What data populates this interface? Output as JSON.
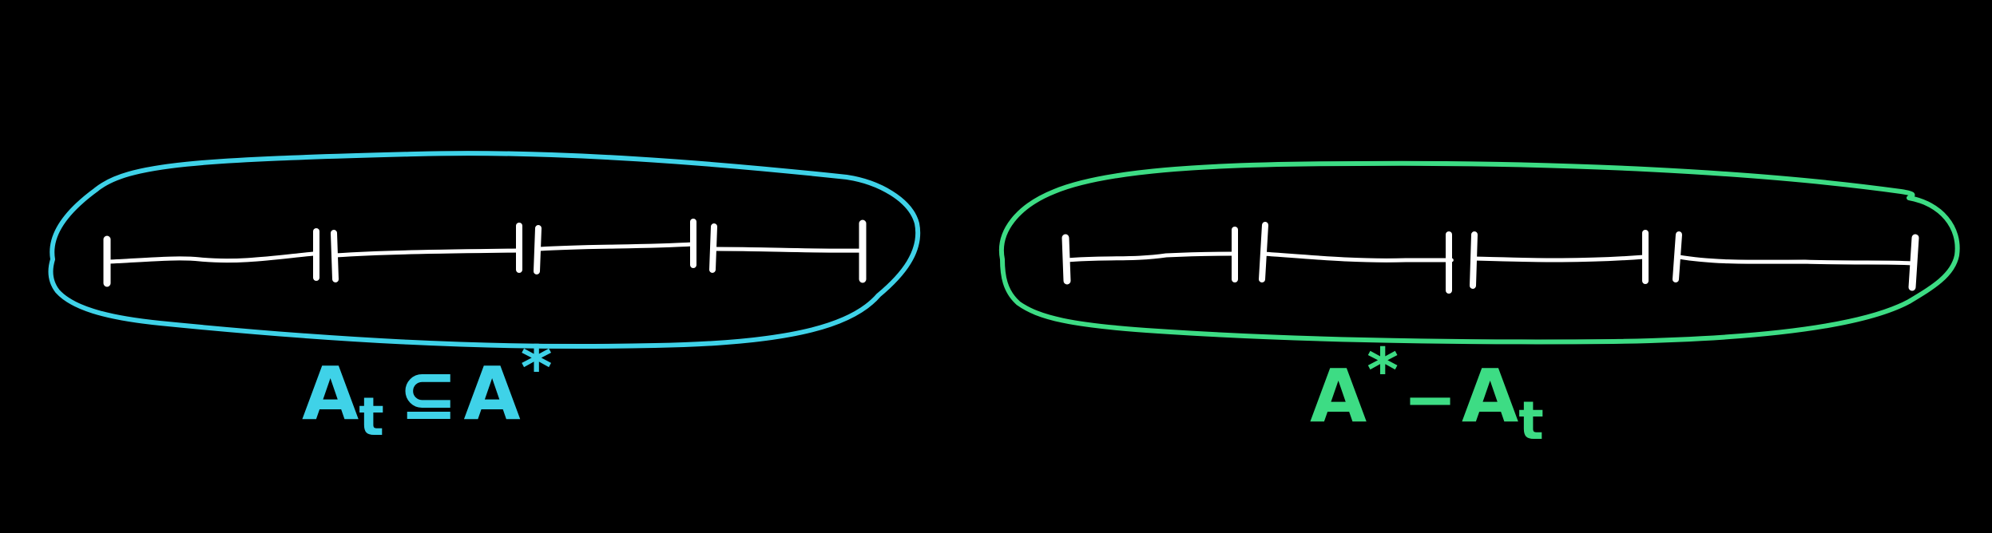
{
  "colors": {
    "background": "#000000",
    "left_group": "#3fd2e8",
    "right_group": "#3ddc84",
    "segments": "#ffffff"
  },
  "left_group": {
    "segment_count": 4,
    "label": {
      "base": "A",
      "subscript": "t",
      "relation": "⊆",
      "target": "A",
      "superscript": "*"
    }
  },
  "right_group": {
    "segment_count": 4,
    "label": {
      "base": "A",
      "superscript": "*",
      "relation": "−",
      "target": "A",
      "subscript": "t"
    }
  }
}
